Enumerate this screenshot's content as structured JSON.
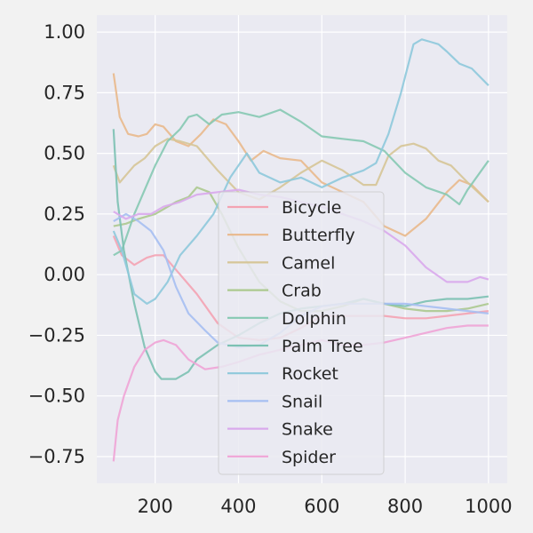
{
  "chart_data": {
    "type": "line",
    "xlim": [
      60,
      1045
    ],
    "ylim": [
      -0.86,
      1.07
    ],
    "x_ticks": [
      200,
      400,
      600,
      800,
      1000
    ],
    "y_ticks": [
      -0.75,
      -0.5,
      -0.25,
      0.0,
      0.25,
      0.5,
      0.75,
      1.0
    ],
    "x_tick_labels": [
      "200",
      "400",
      "600",
      "800",
      "1000"
    ],
    "y_tick_labels": [
      "−0.75",
      "−0.50",
      "−0.25",
      "0.00",
      "0.25",
      "0.50",
      "0.75",
      "1.00"
    ],
    "grid": true,
    "legend_position": "center-bottom",
    "series": [
      {
        "name": "Bicycle",
        "color": "#f4a3b2",
        "x": [
          100,
          120,
          150,
          180,
          200,
          220,
          250,
          300,
          350,
          400,
          450,
          500,
          550,
          600,
          650,
          700,
          750,
          800,
          850,
          900,
          950,
          1000
        ],
        "y": [
          0.16,
          0.08,
          0.04,
          0.07,
          0.08,
          0.08,
          0.02,
          -0.08,
          -0.2,
          -0.26,
          -0.27,
          -0.26,
          -0.22,
          -0.17,
          -0.17,
          -0.17,
          -0.17,
          -0.18,
          -0.18,
          -0.17,
          -0.16,
          -0.15
        ]
      },
      {
        "name": "Butterfly",
        "color": "#e9b98c",
        "x": [
          100,
          115,
          135,
          160,
          180,
          200,
          220,
          250,
          280,
          310,
          340,
          370,
          400,
          430,
          460,
          500,
          550,
          600,
          650,
          700,
          750,
          800,
          850,
          900,
          930,
          960,
          1000
        ],
        "y": [
          0.83,
          0.65,
          0.58,
          0.57,
          0.58,
          0.62,
          0.61,
          0.55,
          0.53,
          0.58,
          0.64,
          0.62,
          0.55,
          0.47,
          0.51,
          0.48,
          0.47,
          0.38,
          0.34,
          0.3,
          0.2,
          0.16,
          0.23,
          0.34,
          0.39,
          0.37,
          0.3
        ]
      },
      {
        "name": "Camel",
        "color": "#d6c597",
        "x": [
          100,
          115,
          130,
          150,
          175,
          200,
          230,
          260,
          300,
          350,
          400,
          450,
          500,
          550,
          600,
          650,
          700,
          730,
          760,
          790,
          820,
          850,
          880,
          910,
          950,
          1000
        ],
        "y": [
          0.45,
          0.38,
          0.41,
          0.45,
          0.48,
          0.53,
          0.56,
          0.55,
          0.53,
          0.43,
          0.34,
          0.31,
          0.36,
          0.42,
          0.47,
          0.43,
          0.37,
          0.37,
          0.49,
          0.53,
          0.54,
          0.52,
          0.47,
          0.45,
          0.38,
          0.3
        ]
      },
      {
        "name": "Crab",
        "color": "#acc98f",
        "x": [
          100,
          130,
          160,
          200,
          250,
          280,
          300,
          330,
          360,
          400,
          450,
          500,
          550,
          600,
          650,
          700,
          750,
          800,
          850,
          900,
          950,
          1000
        ],
        "y": [
          0.2,
          0.21,
          0.23,
          0.25,
          0.3,
          0.32,
          0.36,
          0.34,
          0.25,
          0.11,
          -0.03,
          -0.11,
          -0.15,
          -0.15,
          -0.13,
          -0.1,
          -0.12,
          -0.14,
          -0.15,
          -0.15,
          -0.14,
          -0.12
        ]
      },
      {
        "name": "Dolphin",
        "color": "#86c9b2",
        "x": [
          100,
          120,
          150,
          180,
          200,
          230,
          260,
          280,
          300,
          330,
          360,
          400,
          450,
          500,
          550,
          600,
          650,
          700,
          750,
          800,
          850,
          900,
          930,
          950,
          1000
        ],
        "y": [
          0.08,
          0.1,
          0.25,
          0.37,
          0.45,
          0.55,
          0.6,
          0.65,
          0.66,
          0.62,
          0.66,
          0.67,
          0.65,
          0.68,
          0.63,
          0.57,
          0.56,
          0.55,
          0.51,
          0.42,
          0.36,
          0.33,
          0.29,
          0.35,
          0.47
        ]
      },
      {
        "name": "Palm Tree",
        "color": "#7cc1b3",
        "x": [
          100,
          110,
          125,
          150,
          175,
          200,
          215,
          230,
          250,
          280,
          300,
          350,
          400,
          450,
          500,
          550,
          600,
          650,
          700,
          750,
          800,
          850,
          900,
          950,
          1000
        ],
        "y": [
          0.6,
          0.3,
          0.1,
          -0.12,
          -0.3,
          -0.4,
          -0.43,
          -0.43,
          -0.43,
          -0.4,
          -0.35,
          -0.29,
          -0.25,
          -0.2,
          -0.16,
          -0.14,
          -0.13,
          -0.12,
          -0.1,
          -0.12,
          -0.13,
          -0.11,
          -0.1,
          -0.1,
          -0.09
        ]
      },
      {
        "name": "Rocket",
        "color": "#8ec9db",
        "x": [
          100,
          120,
          150,
          180,
          200,
          230,
          260,
          300,
          340,
          380,
          420,
          450,
          500,
          550,
          600,
          650,
          700,
          730,
          760,
          790,
          820,
          840,
          860,
          880,
          900,
          930,
          960,
          1000
        ],
        "y": [
          0.18,
          0.1,
          -0.08,
          -0.12,
          -0.1,
          -0.03,
          0.08,
          0.16,
          0.25,
          0.4,
          0.5,
          0.42,
          0.38,
          0.4,
          0.36,
          0.4,
          0.43,
          0.46,
          0.58,
          0.75,
          0.95,
          0.97,
          0.96,
          0.95,
          0.92,
          0.87,
          0.85,
          0.78
        ]
      },
      {
        "name": "Snail",
        "color": "#a6bff2",
        "x": [
          100,
          130,
          160,
          190,
          220,
          250,
          280,
          320,
          350,
          400,
          450,
          500,
          550,
          600,
          650,
          700,
          750,
          800,
          850,
          900,
          950,
          1000
        ],
        "y": [
          0.22,
          0.25,
          0.22,
          0.18,
          0.1,
          -0.05,
          -0.16,
          -0.23,
          -0.28,
          -0.3,
          -0.29,
          -0.24,
          -0.17,
          -0.13,
          -0.12,
          -0.12,
          -0.12,
          -0.12,
          -0.13,
          -0.14,
          -0.15,
          -0.16
        ]
      },
      {
        "name": "Snake",
        "color": "#d9a9ec",
        "x": [
          100,
          130,
          160,
          190,
          220,
          260,
          300,
          350,
          400,
          450,
          500,
          550,
          600,
          650,
          700,
          750,
          800,
          850,
          900,
          950,
          980,
          1000
        ],
        "y": [
          0.26,
          0.23,
          0.25,
          0.25,
          0.28,
          0.3,
          0.33,
          0.34,
          0.35,
          0.33,
          0.32,
          0.3,
          0.28,
          0.25,
          0.22,
          0.18,
          0.12,
          0.03,
          -0.03,
          -0.03,
          -0.01,
          -0.02
        ]
      },
      {
        "name": "Spider",
        "color": "#f0a4d6",
        "x": [
          100,
          110,
          125,
          150,
          175,
          200,
          220,
          250,
          280,
          320,
          360,
          400,
          450,
          500,
          550,
          600,
          650,
          700,
          750,
          800,
          850,
          900,
          950,
          1000
        ],
        "y": [
          -0.77,
          -0.6,
          -0.5,
          -0.38,
          -0.31,
          -0.28,
          -0.27,
          -0.29,
          -0.35,
          -0.39,
          -0.38,
          -0.36,
          -0.33,
          -0.31,
          -0.29,
          -0.27,
          -0.29,
          -0.29,
          -0.28,
          -0.26,
          -0.24,
          -0.22,
          -0.21,
          -0.21
        ]
      }
    ]
  }
}
